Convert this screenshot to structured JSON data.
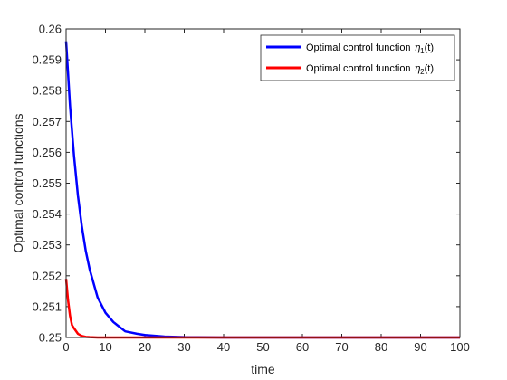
{
  "chart_data": {
    "type": "line",
    "xlabel": "time",
    "ylabel": "Optimal control functions",
    "xlim": [
      0,
      100
    ],
    "ylim": [
      0.25,
      0.26
    ],
    "xticks": [
      0,
      10,
      20,
      30,
      40,
      50,
      60,
      70,
      80,
      90,
      100
    ],
    "xtick_labels": [
      "0",
      "10",
      "20",
      "30",
      "40",
      "50",
      "60",
      "70",
      "80",
      "90",
      "100"
    ],
    "yticks": [
      0.25,
      0.251,
      0.252,
      0.253,
      0.254,
      0.255,
      0.256,
      0.257,
      0.258,
      0.259,
      0.26
    ],
    "ytick_labels": [
      "0.25",
      "0.251",
      "0.252",
      "0.253",
      "0.254",
      "0.255",
      "0.256",
      "0.257",
      "0.258",
      "0.259",
      "0.26"
    ],
    "grid": false,
    "legend_position": "top-right",
    "series": [
      {
        "name": "Optimal control function η1(t)",
        "legend_prefix": "Optimal control function",
        "legend_symbol": "η",
        "legend_subscript": "1",
        "legend_suffix": "(t)",
        "color": "#0000ff",
        "x": [
          0,
          1,
          2,
          3,
          4,
          5,
          6,
          8,
          10,
          12,
          15,
          18,
          20,
          25,
          30,
          40,
          50,
          60,
          70,
          80,
          90,
          100
        ],
        "y": [
          0.2596,
          0.2575,
          0.2559,
          0.2546,
          0.2536,
          0.2528,
          0.2522,
          0.2513,
          0.2508,
          0.2505,
          0.2502,
          0.25012,
          0.25008,
          0.25003,
          0.25001,
          0.25,
          0.25,
          0.25,
          0.25,
          0.25,
          0.25,
          0.25
        ]
      },
      {
        "name": "Optimal control function η2(t)",
        "legend_prefix": "Optimal control function",
        "legend_symbol": "η",
        "legend_subscript": "2",
        "legend_suffix": "(t)",
        "color": "#ff0000",
        "x": [
          0,
          0.5,
          1,
          1.5,
          2,
          3,
          4,
          5,
          6,
          8,
          10,
          15,
          20,
          30,
          40,
          50,
          60,
          70,
          80,
          90,
          100
        ],
        "y": [
          0.2519,
          0.2512,
          0.2507,
          0.2504,
          0.2503,
          0.25012,
          0.25005,
          0.25002,
          0.25001,
          0.25,
          0.25,
          0.25,
          0.25,
          0.25,
          0.25,
          0.25,
          0.25,
          0.25,
          0.25,
          0.25,
          0.25
        ]
      }
    ]
  }
}
